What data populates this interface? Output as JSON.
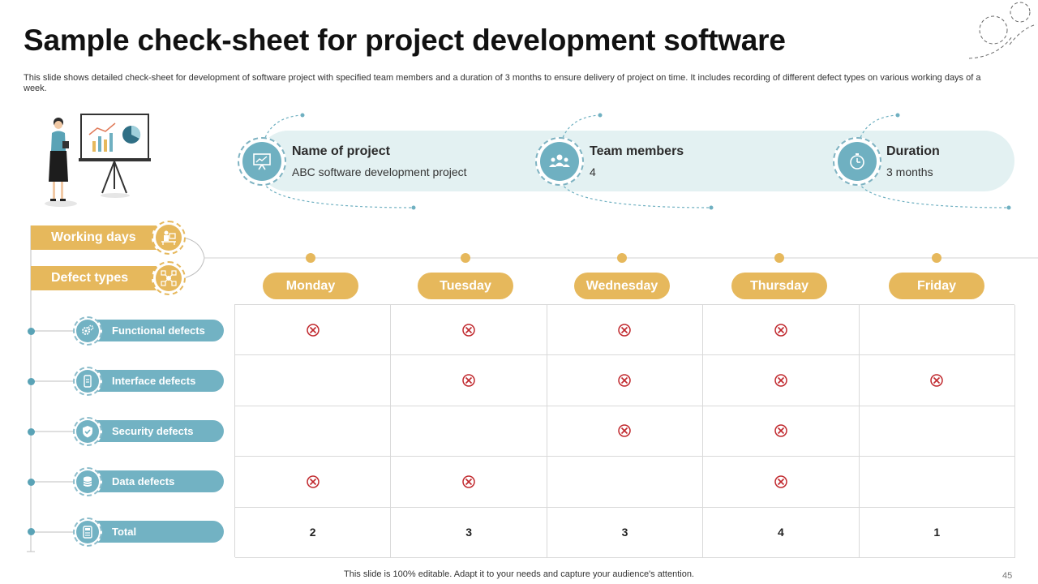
{
  "title": "Sample check-sheet for project development software",
  "subtitle": "This slide shows detailed check-sheet for development of software project with specified team members and a duration of 3 months to ensure delivery of project on time. It includes recording of different defect types on various working days of a week.",
  "info": [
    {
      "label": "Name of project",
      "value": "ABC software development project",
      "icon": "presentation-board-icon"
    },
    {
      "label": "Team members",
      "value": "4",
      "icon": "team-icon"
    },
    {
      "label": "Duration",
      "value": "3 months",
      "icon": "stopwatch-icon"
    }
  ],
  "headers": {
    "working_days": "Working days",
    "defect_types": "Defect types"
  },
  "days": [
    "Monday",
    "Tuesday",
    "Wednesday",
    "Thursday",
    "Friday"
  ],
  "rows": [
    {
      "label": "Functional defects",
      "icon": "gears-icon",
      "marks": [
        true,
        true,
        true,
        true,
        false
      ]
    },
    {
      "label": "Interface defects",
      "icon": "device-icon",
      "marks": [
        false,
        true,
        true,
        true,
        true
      ]
    },
    {
      "label": "Security defects",
      "icon": "shield-check-icon",
      "marks": [
        false,
        false,
        true,
        true,
        false
      ]
    },
    {
      "label": "Data defects",
      "icon": "database-icon",
      "marks": [
        true,
        true,
        false,
        true,
        false
      ]
    }
  ],
  "total": {
    "label": "Total",
    "icon": "calculator-icon",
    "values": [
      "2",
      "3",
      "3",
      "4",
      "1"
    ]
  },
  "footer": "This slide is 100% editable. Adapt it to your needs and capture your audience's attention.",
  "page_number": "45",
  "colors": {
    "gold": "#e6b85c",
    "teal": "#72b2c3",
    "banner": "#e3f1f2",
    "mark": "#c0282d"
  }
}
